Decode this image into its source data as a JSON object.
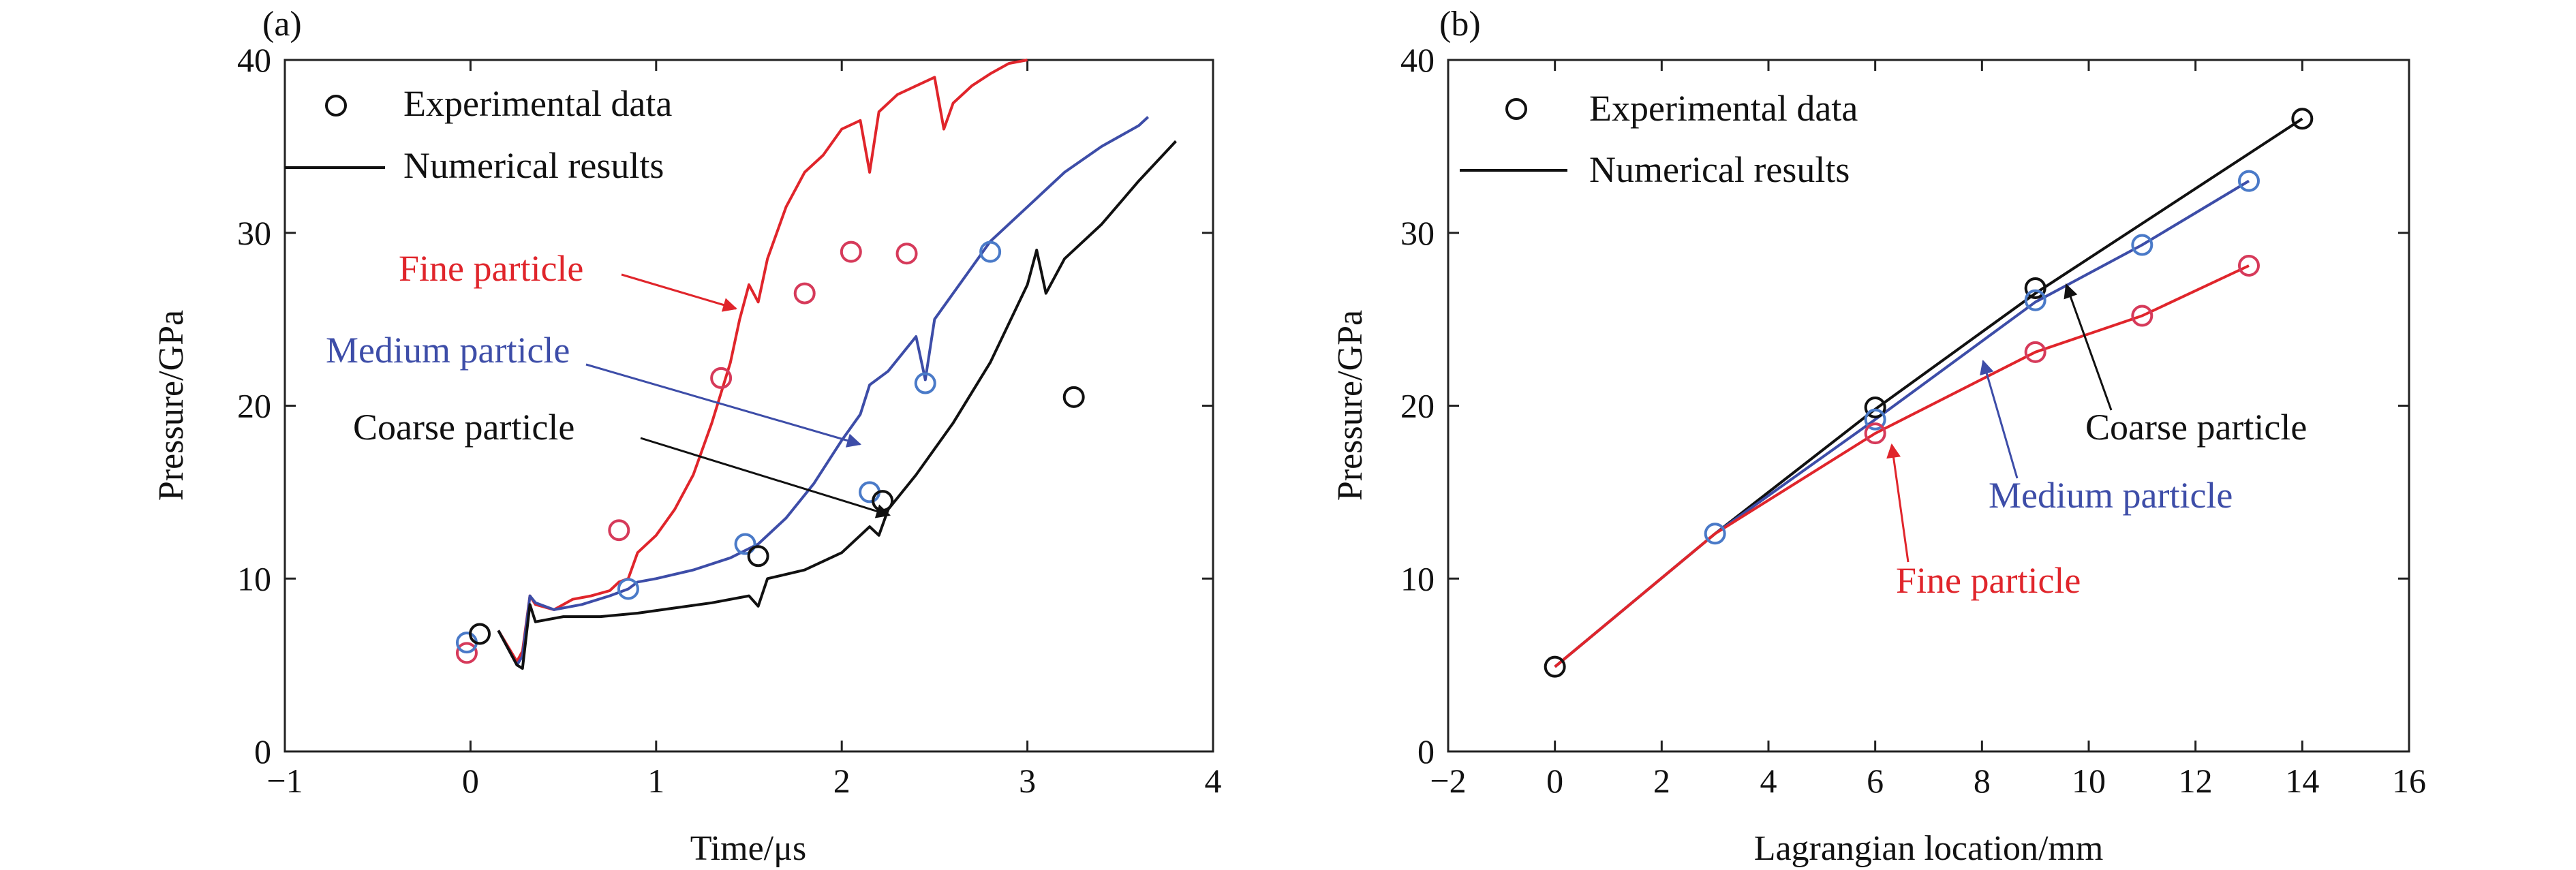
{
  "colors": {
    "coarse": "#111111",
    "medium": "#3d4da8",
    "fine": "#e0252b",
    "fine_marker": "#d63a5a",
    "medium_marker": "#4a7ac8"
  },
  "chart_data": [
    {
      "type": "line",
      "panel_label": "(a)",
      "xlabel": "Time/μs",
      "ylabel": "Pressure/GPa",
      "xlim": [
        -1,
        4
      ],
      "ylim": [
        0,
        40
      ],
      "xticks": [
        -1,
        0,
        1,
        2,
        3,
        4
      ],
      "yticks": [
        0,
        10,
        20,
        30,
        40
      ],
      "legend": {
        "placement": "top-left",
        "entries": [
          "Experimental data",
          "Numerical results"
        ]
      },
      "annotations": [
        {
          "text": "Fine particle",
          "series": "fine"
        },
        {
          "text": "Medium particle",
          "series": "medium"
        },
        {
          "text": "Coarse particle",
          "series": "coarse"
        }
      ],
      "series": [
        {
          "key": "fine",
          "color": "#e0252b",
          "x": [
            0.15,
            0.25,
            0.28,
            0.32,
            0.35,
            0.45,
            0.55,
            0.65,
            0.75,
            0.8,
            0.85,
            0.9,
            1.0,
            1.1,
            1.2,
            1.3,
            1.4,
            1.45,
            1.5,
            1.55,
            1.6,
            1.7,
            1.8,
            1.9,
            2.0,
            2.1,
            2.15,
            2.2,
            2.3,
            2.4,
            2.5,
            2.55,
            2.6,
            2.7,
            2.8,
            2.9,
            3.0
          ],
          "y": [
            7.0,
            5.2,
            5.8,
            9.0,
            8.5,
            8.2,
            8.8,
            9.0,
            9.3,
            9.8,
            10.0,
            11.5,
            12.5,
            14.0,
            16.0,
            19.0,
            22.5,
            25.0,
            27.0,
            26.0,
            28.5,
            31.5,
            33.5,
            34.5,
            36.0,
            36.5,
            33.5,
            37.0,
            38.0,
            38.5,
            39.0,
            36.0,
            37.5,
            38.5,
            39.2,
            39.8,
            40.0
          ]
        },
        {
          "key": "medium",
          "color": "#3d4da8",
          "x": [
            0.15,
            0.25,
            0.28,
            0.32,
            0.35,
            0.45,
            0.6,
            0.75,
            0.85,
            0.9,
            1.0,
            1.2,
            1.4,
            1.55,
            1.7,
            1.85,
            2.0,
            2.1,
            2.15,
            2.25,
            2.4,
            2.45,
            2.5,
            2.6,
            2.7,
            2.8,
            3.0,
            3.2,
            3.4,
            3.6,
            3.65
          ],
          "y": [
            7.0,
            5.0,
            5.5,
            9.0,
            8.6,
            8.2,
            8.5,
            9.0,
            9.4,
            9.8,
            10.0,
            10.5,
            11.2,
            12.0,
            13.5,
            15.5,
            18.0,
            19.5,
            21.2,
            22.0,
            24.0,
            21.5,
            25.0,
            26.5,
            28.0,
            29.5,
            31.5,
            33.5,
            35.0,
            36.2,
            36.7
          ]
        },
        {
          "key": "coarse",
          "color": "#111111",
          "x": [
            0.15,
            0.25,
            0.28,
            0.32,
            0.35,
            0.5,
            0.7,
            0.9,
            1.1,
            1.3,
            1.5,
            1.55,
            1.6,
            1.8,
            2.0,
            2.15,
            2.2,
            2.25,
            2.4,
            2.6,
            2.8,
            3.0,
            3.05,
            3.1,
            3.2,
            3.4,
            3.6,
            3.8
          ],
          "y": [
            7.0,
            5.0,
            4.8,
            8.5,
            7.5,
            7.8,
            7.8,
            8.0,
            8.3,
            8.6,
            9.0,
            8.4,
            10.0,
            10.5,
            11.5,
            13.0,
            12.5,
            14.0,
            16.0,
            19.0,
            22.5,
            27.0,
            29.0,
            26.5,
            28.5,
            30.5,
            33.0,
            35.3
          ]
        }
      ],
      "experimental": [
        {
          "x": -0.02,
          "y": 5.7,
          "series": "fine"
        },
        {
          "x": -0.02,
          "y": 6.3,
          "series": "medium"
        },
        {
          "x": 0.05,
          "y": 6.8,
          "series": "coarse"
        },
        {
          "x": 0.8,
          "y": 12.8,
          "series": "fine"
        },
        {
          "x": 0.85,
          "y": 9.4,
          "series": "medium"
        },
        {
          "x": 1.35,
          "y": 21.6,
          "series": "fine"
        },
        {
          "x": 1.48,
          "y": 12.0,
          "series": "medium"
        },
        {
          "x": 1.55,
          "y": 11.3,
          "series": "coarse"
        },
        {
          "x": 1.8,
          "y": 26.5,
          "series": "fine"
        },
        {
          "x": 2.05,
          "y": 28.9,
          "series": "fine"
        },
        {
          "x": 2.15,
          "y": 15.0,
          "series": "medium"
        },
        {
          "x": 2.22,
          "y": 14.5,
          "series": "coarse"
        },
        {
          "x": 2.35,
          "y": 28.8,
          "series": "fine"
        },
        {
          "x": 2.45,
          "y": 21.3,
          "series": "medium"
        },
        {
          "x": 2.8,
          "y": 28.9,
          "series": "medium"
        },
        {
          "x": 3.25,
          "y": 20.5,
          "series": "coarse"
        }
      ]
    },
    {
      "type": "line",
      "panel_label": "(b)",
      "xlabel": "Lagrangian location/mm",
      "ylabel": "Pressure/GPa",
      "xlim": [
        -2,
        16
      ],
      "ylim": [
        0,
        40
      ],
      "xticks": [
        -2,
        0,
        2,
        4,
        6,
        8,
        10,
        12,
        14,
        16
      ],
      "yticks": [
        0,
        10,
        20,
        30,
        40
      ],
      "legend": {
        "placement": "top-left",
        "entries": [
          "Experimental data",
          "Numerical results"
        ]
      },
      "annotations": [
        {
          "text": "Coarse particle",
          "series": "coarse"
        },
        {
          "text": "Medium particle",
          "series": "medium"
        },
        {
          "text": "Fine particle",
          "series": "fine"
        }
      ],
      "series": [
        {
          "key": "coarse",
          "color": "#111111",
          "x": [
            0,
            3,
            6,
            9,
            14
          ],
          "y": [
            4.9,
            12.6,
            19.8,
            26.5,
            36.6
          ]
        },
        {
          "key": "medium",
          "color": "#3d4da8",
          "x": [
            0,
            3,
            6,
            9,
            11,
            13
          ],
          "y": [
            4.9,
            12.6,
            19.2,
            26.0,
            29.3,
            33.0
          ]
        },
        {
          "key": "fine",
          "color": "#e0252b",
          "x": [
            0,
            3,
            6,
            9,
            11,
            13
          ],
          "y": [
            4.9,
            12.6,
            18.4,
            23.1,
            25.2,
            28.1
          ]
        }
      ],
      "experimental": [
        {
          "x": 0,
          "y": 4.9,
          "series": "coarse"
        },
        {
          "x": 3,
          "y": 12.6,
          "series": "medium"
        },
        {
          "x": 6,
          "y": 19.9,
          "series": "coarse"
        },
        {
          "x": 6,
          "y": 19.2,
          "series": "medium"
        },
        {
          "x": 6,
          "y": 18.4,
          "series": "fine"
        },
        {
          "x": 9,
          "y": 26.8,
          "series": "coarse"
        },
        {
          "x": 9,
          "y": 26.1,
          "series": "medium"
        },
        {
          "x": 9,
          "y": 23.1,
          "series": "fine"
        },
        {
          "x": 11,
          "y": 29.3,
          "series": "medium"
        },
        {
          "x": 11,
          "y": 25.2,
          "series": "fine"
        },
        {
          "x": 13,
          "y": 33.0,
          "series": "medium"
        },
        {
          "x": 13,
          "y": 28.1,
          "series": "fine"
        },
        {
          "x": 14,
          "y": 36.6,
          "series": "coarse"
        }
      ]
    }
  ]
}
